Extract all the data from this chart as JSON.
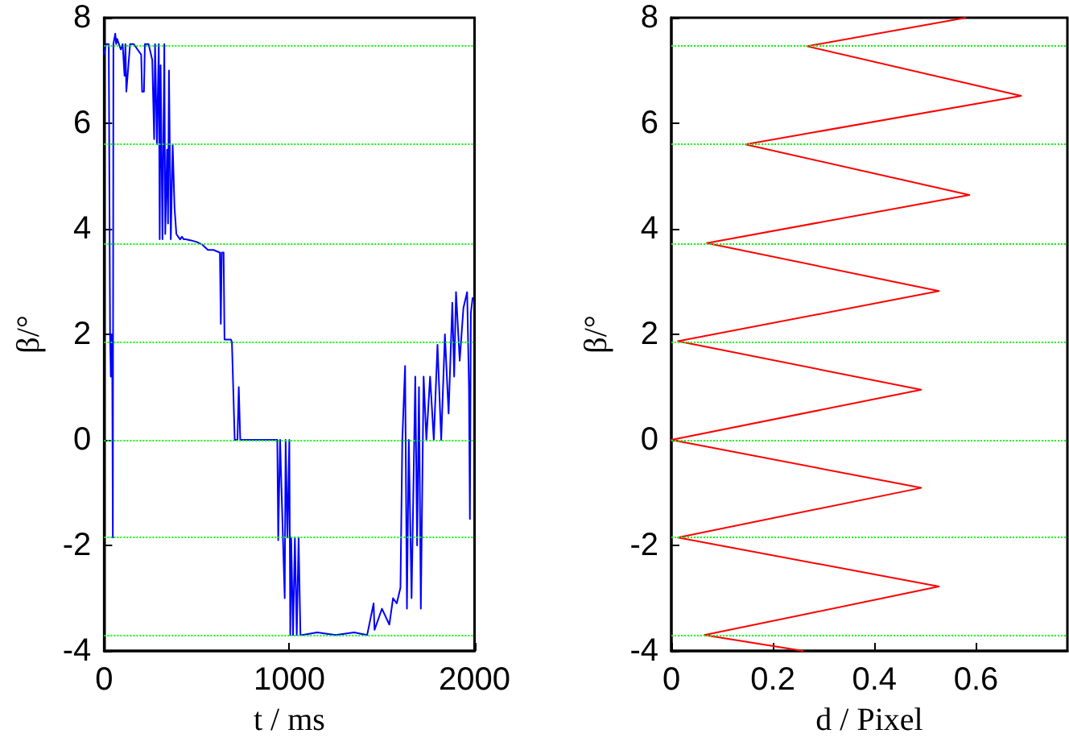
{
  "chart_data": [
    {
      "type": "line",
      "xlabel": "t / ms",
      "ylabel": "β/°",
      "xlim": [
        0,
        2000
      ],
      "xticks": [
        0,
        1000,
        2000
      ],
      "ylim": [
        -4,
        8
      ],
      "yticks": [
        -4,
        -2,
        0,
        2,
        4,
        6,
        8
      ],
      "grid": false,
      "line_style": "solid",
      "marker": "none",
      "ref_lines": [
        {
          "axis": "y",
          "value": 7.46,
          "color": "#00ff00",
          "line_style": "dotted"
        },
        {
          "axis": "y",
          "value": 5.6,
          "color": "#00ff00",
          "line_style": "dotted"
        },
        {
          "axis": "y",
          "value": 3.73,
          "color": "#00ff00",
          "line_style": "dotted"
        },
        {
          "axis": "y",
          "value": 1.87,
          "color": "#00ff00",
          "line_style": "dotted"
        },
        {
          "axis": "y",
          "value": 0,
          "color": "#00ff00",
          "line_style": "dotted"
        },
        {
          "axis": "y",
          "value": -1.85,
          "color": "#00ff00",
          "line_style": "dotted"
        },
        {
          "axis": "y",
          "value": -3.7,
          "color": "#00ff00",
          "line_style": "dotted"
        }
      ],
      "series": [
        {
          "color": "#0000ff",
          "x": [
            0,
            10,
            25,
            32,
            36,
            40,
            44,
            47,
            50,
            55,
            60,
            65,
            70,
            80,
            90,
            100,
            110,
            115,
            120,
            140,
            145,
            160,
            200,
            205,
            215,
            220,
            240,
            260,
            270,
            275,
            285,
            295,
            300,
            305,
            315,
            325,
            330,
            340,
            345,
            350,
            360,
            370,
            380,
            390,
            400,
            410,
            420,
            430,
            440,
            470,
            500,
            530,
            560,
            590,
            625,
            630,
            635,
            645,
            650,
            685,
            690,
            705,
            720,
            727,
            735,
            800,
            900,
            935,
            940,
            950,
            960,
            975,
            980,
            990,
            1000,
            1005,
            1010,
            1020,
            1030,
            1040,
            1050,
            1060,
            1070,
            1150,
            1250,
            1350,
            1420,
            1455,
            1460,
            1500,
            1540,
            1560,
            1580,
            1600,
            1610,
            1625,
            1635,
            1645,
            1660,
            1680,
            1690,
            1700,
            1710,
            1725,
            1740,
            1760,
            1780,
            1800,
            1820,
            1840,
            1860,
            1880,
            1890,
            1900,
            1920,
            1940,
            1960,
            1970,
            1975,
            1980,
            1990
          ],
          "values": [
            7.3,
            7.5,
            7.5,
            2.0,
            1.2,
            2.0,
            1.2,
            -1.85,
            7.5,
            7.5,
            7.7,
            7.5,
            7.6,
            7.5,
            7.4,
            7.5,
            6.9,
            7.5,
            6.6,
            7.5,
            7.5,
            7.5,
            7.3,
            6.6,
            6.6,
            7.5,
            7.5,
            7.2,
            5.7,
            7.5,
            5.6,
            7.5,
            3.8,
            7.1,
            3.8,
            7.5,
            3.9,
            5.5,
            4.1,
            7.0,
            3.8,
            5.6,
            4.4,
            3.9,
            3.85,
            3.8,
            3.85,
            3.8,
            3.8,
            3.78,
            3.75,
            3.7,
            3.6,
            3.6,
            3.55,
            2.2,
            3.55,
            3.55,
            1.9,
            1.9,
            1.85,
            0.0,
            0.0,
            1.0,
            0.0,
            0.0,
            0.0,
            0.0,
            -1.9,
            0.0,
            -1.2,
            -3.0,
            0.0,
            -1.85,
            0.0,
            -3.7,
            -1.85,
            -3.7,
            -1.85,
            -3.7,
            -1.85,
            -3.7,
            -3.7,
            -3.65,
            -3.7,
            -3.65,
            -3.7,
            -3.1,
            -3.6,
            -3.2,
            -3.5,
            -3.0,
            -3.1,
            -2.8,
            0.0,
            1.4,
            -3.2,
            0.0,
            -3.0,
            1.2,
            -2.0,
            1.0,
            -3.2,
            1.2,
            0.0,
            1.2,
            0.0,
            1.8,
            0.0,
            2.0,
            0.5,
            2.6,
            1.2,
            2.8,
            1.5,
            2.5,
            2.8,
            1.0,
            -1.5,
            2.4,
            2.7
          ]
        }
      ]
    },
    {
      "type": "line",
      "xlabel": "d / Pixel",
      "ylabel": "β/°",
      "xlim": [
        0,
        0.78
      ],
      "xticks": [
        0,
        0.2,
        0.4,
        0.6
      ],
      "ylim": [
        -4,
        8
      ],
      "yticks": [
        -4,
        -2,
        0,
        2,
        4,
        6,
        8
      ],
      "grid": false,
      "line_style": "solid",
      "marker": "none",
      "ref_lines": [
        {
          "axis": "y",
          "value": 7.46,
          "color": "#00ff00",
          "line_style": "dotted"
        },
        {
          "axis": "y",
          "value": 5.6,
          "color": "#00ff00",
          "line_style": "dotted"
        },
        {
          "axis": "y",
          "value": 3.73,
          "color": "#00ff00",
          "line_style": "dotted"
        },
        {
          "axis": "y",
          "value": 1.87,
          "color": "#00ff00",
          "line_style": "dotted"
        },
        {
          "axis": "y",
          "value": 0,
          "color": "#00ff00",
          "line_style": "dotted"
        },
        {
          "axis": "y",
          "value": -1.85,
          "color": "#00ff00",
          "line_style": "dotted"
        },
        {
          "axis": "y",
          "value": -3.7,
          "color": "#00ff00",
          "line_style": "dotted"
        }
      ],
      "series": [
        {
          "color": "#ff0000",
          "x": [
            0.58,
            0.267,
            0.689,
            0.146,
            0.587,
            0.07,
            0.527,
            0.013,
            0.492,
            0.0,
            0.492,
            0.013,
            0.527,
            0.065,
            0.26
          ],
          "values": [
            8,
            7.46,
            6.52,
            5.6,
            4.64,
            3.73,
            2.82,
            1.87,
            0.95,
            0,
            -0.91,
            -1.85,
            -2.78,
            -3.7,
            -4
          ]
        }
      ]
    }
  ]
}
